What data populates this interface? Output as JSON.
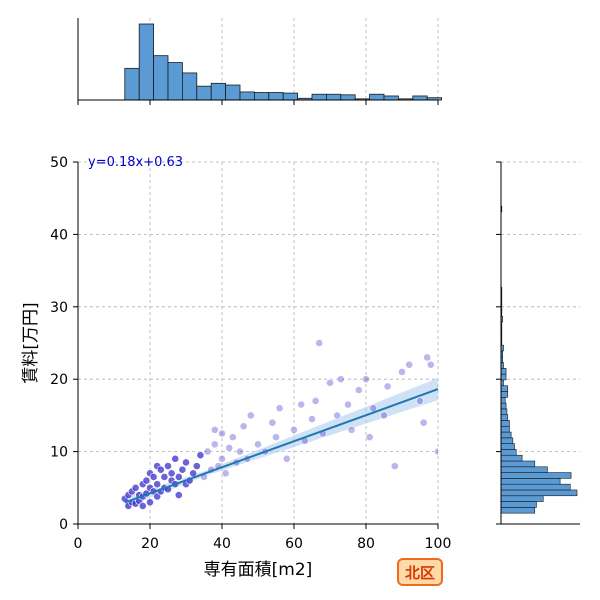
{
  "chart_data": {
    "type": "scatter",
    "xlabel": "専有面積[m2]",
    "ylabel": "賃料[万円]",
    "xlim": [
      0,
      100
    ],
    "ylim": [
      0,
      50
    ],
    "x_ticks": [
      "0",
      "20",
      "40",
      "60",
      "80",
      "100"
    ],
    "y_ticks": [
      "0",
      "10",
      "20",
      "30",
      "40",
      "50"
    ],
    "grid": true,
    "annotation": "y=0.18x+0.63",
    "badge": "北区",
    "regression": {
      "slope": 0.18,
      "intercept": 0.63,
      "x_range": [
        13,
        100
      ]
    },
    "colors": {
      "points": "#3b2fc9",
      "regression": "#1f77b4",
      "band": "#a8c8ec",
      "histogram": "#5b9bd5",
      "annotation": "#0000cc",
      "badge_fill": "#ffd9a8",
      "badge_border": "#f26b1d",
      "badge_text": "#d43a00"
    },
    "series": [
      {
        "x": [
          13,
          14,
          14,
          15,
          15,
          16,
          16,
          17,
          17,
          18,
          18,
          18,
          19,
          19,
          20,
          20,
          20,
          21,
          21,
          22,
          22,
          22,
          23,
          23,
          24,
          24,
          25,
          25,
          26,
          26,
          27,
          27,
          28,
          28,
          29,
          30,
          30,
          31,
          32,
          33,
          34,
          35,
          36,
          37,
          38,
          38,
          39,
          40,
          40,
          41,
          42,
          43,
          44,
          45,
          46,
          47,
          48,
          50,
          52,
          54,
          55,
          56,
          58,
          60,
          62,
          63,
          65,
          66,
          67,
          68,
          70,
          72,
          73,
          75,
          76,
          78,
          80,
          81,
          82,
          85,
          86,
          88,
          90,
          92,
          95,
          96,
          97,
          98,
          100
        ],
        "y": [
          3.5,
          2.5,
          4.0,
          3.0,
          4.5,
          2.8,
          5.0,
          3.2,
          4.0,
          2.5,
          5.5,
          3.8,
          4.2,
          6.0,
          3.0,
          5.0,
          7.0,
          4.5,
          6.5,
          3.8,
          5.5,
          8.0,
          4.5,
          7.5,
          5.0,
          6.5,
          4.8,
          8.0,
          6.0,
          7.0,
          5.5,
          9.0,
          6.5,
          4.0,
          7.5,
          5.5,
          8.5,
          6.0,
          7.0,
          8.0,
          9.5,
          6.5,
          10.0,
          7.5,
          11.0,
          13.0,
          8.0,
          12.5,
          9.0,
          7.0,
          10.5,
          12.0,
          8.5,
          10.0,
          13.5,
          9.0,
          15.0,
          11.0,
          10.0,
          14.0,
          12.0,
          16.0,
          9.0,
          13.0,
          16.5,
          11.5,
          14.5,
          17.0,
          25.0,
          12.5,
          19.5,
          15.0,
          20.0,
          16.5,
          13.0,
          18.5,
          20.0,
          12.0,
          16.0,
          15.0,
          19.0,
          8.0,
          21.0,
          22.0,
          17.0,
          14.0,
          23.0,
          22.0,
          10.0
        ]
      }
    ],
    "top_histogram": {
      "bin_start": 13,
      "bin_width": 4,
      "counts": [
        55,
        132,
        77,
        65,
        47,
        24,
        29,
        26,
        14,
        13,
        13,
        12,
        3,
        10,
        10,
        9,
        2,
        10,
        7,
        2,
        7,
        4
      ]
    },
    "right_histogram": {
      "bin_start": 1.5,
      "bin_width": 0.8,
      "counts": [
        40,
        42,
        50,
        90,
        82,
        70,
        83,
        55,
        40,
        25,
        18,
        16,
        14,
        12,
        10,
        10,
        8,
        7,
        6,
        5,
        8,
        8,
        3,
        6,
        6,
        3,
        2,
        2,
        3,
        1,
        1,
        1,
        1,
        2,
        1,
        1,
        1,
        1,
        1,
        0,
        0,
        0,
        0,
        0,
        0,
        0,
        0,
        0,
        0,
        0,
        0,
        0,
        1
      ]
    }
  }
}
